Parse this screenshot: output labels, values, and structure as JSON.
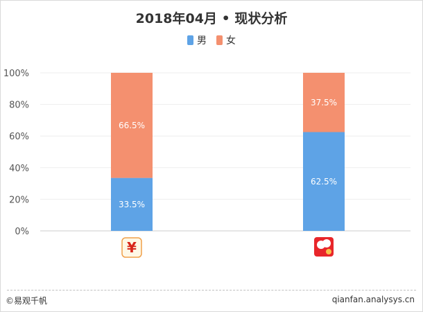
{
  "colors": {
    "male": "#5ea3e6",
    "female": "#f4906f",
    "grid": "#eeeeee",
    "axis": "#cccccc",
    "text": "#333333"
  },
  "legend": {
    "male": "男",
    "female": "女"
  },
  "footer": {
    "copyright": "©易观千帆",
    "site": "qianfan.analysys.cn"
  },
  "chart_data": {
    "type": "bar",
    "stacked": true,
    "title": "2018年04月 • 现状分析",
    "categories": [
      "app1",
      "app2"
    ],
    "category_icons": [
      "yen-app-icon",
      "red-lucky-app-icon"
    ],
    "series": [
      {
        "name": "男",
        "values": [
          33.5,
          62.5
        ],
        "labels": [
          "33.5%",
          "62.5%"
        ]
      },
      {
        "name": "女",
        "values": [
          66.5,
          37.5
        ],
        "labels": [
          "66.5%",
          "37.5%"
        ]
      }
    ],
    "ylim": [
      0,
      100
    ],
    "yticks": [
      "0%",
      "20%",
      "40%",
      "60%",
      "80%",
      "100%"
    ],
    "legend_position": "top-center",
    "grid": true
  }
}
